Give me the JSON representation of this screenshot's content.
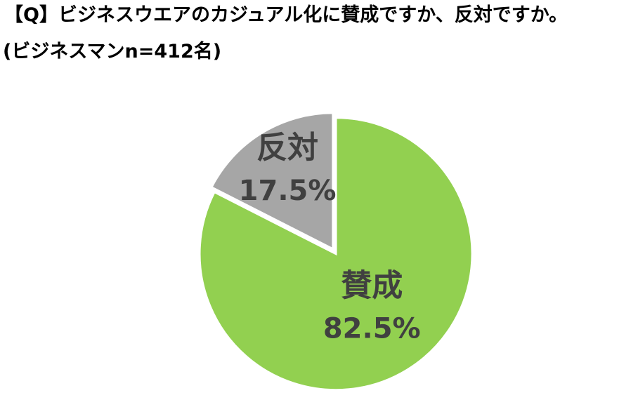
{
  "chart_data": {
    "type": "pie",
    "title": "【Q】ビジネスウエアのカジュアル化に賛成ですか、反対ですか。",
    "subtitle": "(ビジネスマンn=412名)",
    "categories": [
      "賛成",
      "反対"
    ],
    "values": [
      82.5,
      17.5
    ],
    "value_labels": [
      "82.5%",
      "17.5%"
    ],
    "colors": [
      "#92d050",
      "#a6a6a6"
    ]
  }
}
